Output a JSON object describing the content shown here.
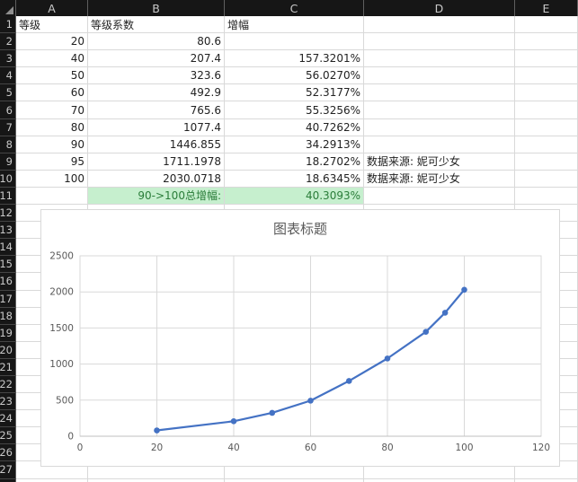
{
  "colors": {
    "accent_line": "#4472C4",
    "highlight_bg": "#C6EFCE",
    "highlight_text": "#2A7D39",
    "header_bg": "#161616",
    "gridline": "#D9D9D9",
    "axis_line": "#BFBFBF",
    "chart_text": "#595959"
  },
  "sheet": {
    "column_headers": [
      "A",
      "B",
      "C",
      "D",
      "E"
    ],
    "rows": [
      {
        "n": "1",
        "cells": [
          {
            "c": "A",
            "v": "等级",
            "a": "l"
          },
          {
            "c": "B",
            "v": "等级系数",
            "a": "l"
          },
          {
            "c": "C",
            "v": "增幅",
            "a": "l"
          }
        ]
      },
      {
        "n": "2",
        "cells": [
          {
            "c": "A",
            "v": "20",
            "a": "r"
          },
          {
            "c": "B",
            "v": "80.6",
            "a": "r"
          }
        ]
      },
      {
        "n": "3",
        "cells": [
          {
            "c": "A",
            "v": "40",
            "a": "r"
          },
          {
            "c": "B",
            "v": "207.4",
            "a": "r"
          },
          {
            "c": "C",
            "v": "157.3201%",
            "a": "r"
          }
        ]
      },
      {
        "n": "4",
        "cells": [
          {
            "c": "A",
            "v": "50",
            "a": "r"
          },
          {
            "c": "B",
            "v": "323.6",
            "a": "r"
          },
          {
            "c": "C",
            "v": "56.0270%",
            "a": "r"
          }
        ]
      },
      {
        "n": "5",
        "cells": [
          {
            "c": "A",
            "v": "60",
            "a": "r"
          },
          {
            "c": "B",
            "v": "492.9",
            "a": "r"
          },
          {
            "c": "C",
            "v": "52.3177%",
            "a": "r"
          }
        ]
      },
      {
        "n": "6",
        "cells": [
          {
            "c": "A",
            "v": "70",
            "a": "r"
          },
          {
            "c": "B",
            "v": "765.6",
            "a": "r"
          },
          {
            "c": "C",
            "v": "55.3256%",
            "a": "r"
          }
        ]
      },
      {
        "n": "7",
        "cells": [
          {
            "c": "A",
            "v": "80",
            "a": "r"
          },
          {
            "c": "B",
            "v": "1077.4",
            "a": "r"
          },
          {
            "c": "C",
            "v": "40.7262%",
            "a": "r"
          }
        ]
      },
      {
        "n": "8",
        "cells": [
          {
            "c": "A",
            "v": "90",
            "a": "r"
          },
          {
            "c": "B",
            "v": "1446.855",
            "a": "r"
          },
          {
            "c": "C",
            "v": "34.2913%",
            "a": "r"
          }
        ]
      },
      {
        "n": "9",
        "cells": [
          {
            "c": "A",
            "v": "95",
            "a": "r"
          },
          {
            "c": "B",
            "v": "1711.1978",
            "a": "r"
          },
          {
            "c": "C",
            "v": "18.2702%",
            "a": "r"
          },
          {
            "c": "D",
            "v": "数据来源: 妮可少女",
            "a": "l"
          }
        ]
      },
      {
        "n": "10",
        "cells": [
          {
            "c": "A",
            "v": "100",
            "a": "r"
          },
          {
            "c": "B",
            "v": "2030.0718",
            "a": "r"
          },
          {
            "c": "C",
            "v": "18.6345%",
            "a": "r"
          },
          {
            "c": "D",
            "v": "数据来源: 妮可少女",
            "a": "l"
          }
        ]
      },
      {
        "n": "11",
        "cells": [
          {
            "c": "B",
            "v": "90->100总增幅:",
            "a": "r",
            "hl": true
          },
          {
            "c": "C",
            "v": "40.3093%",
            "a": "r",
            "hl": true
          }
        ]
      }
    ]
  },
  "chart_data": {
    "type": "line",
    "title": "图表标题",
    "x": [
      20,
      40,
      50,
      60,
      70,
      80,
      90,
      95,
      100
    ],
    "y": [
      80.6,
      207.4,
      323.6,
      492.9,
      765.6,
      1077.4,
      1446.855,
      1711.1978,
      2030.0718
    ],
    "series_name": "等级系数",
    "xlabel": "",
    "ylabel": "",
    "xlim": [
      0,
      120
    ],
    "ylim": [
      0,
      2500
    ],
    "x_ticks": [
      0,
      20,
      40,
      60,
      80,
      100,
      120
    ],
    "y_ticks": [
      0,
      500,
      1000,
      1500,
      2000,
      2500
    ],
    "grid": true,
    "legend": "none",
    "marker": "circle"
  }
}
